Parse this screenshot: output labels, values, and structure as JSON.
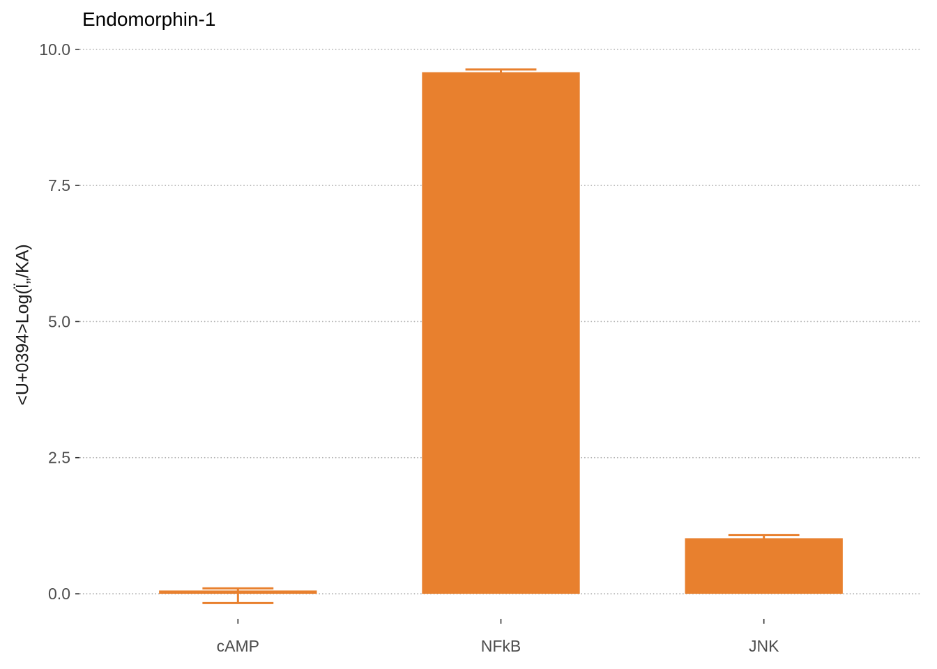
{
  "chart_data": {
    "type": "bar",
    "title": "Endomorphin-1",
    "ylabel": "<U+0394>Log(Ï„/KA)",
    "categories": [
      "cAMP",
      "NFkB",
      "JNK"
    ],
    "values": [
      0.06,
      9.58,
      1.02
    ],
    "error_low": [
      -0.17,
      9.53,
      0.97
    ],
    "error_high": [
      0.1,
      9.63,
      1.08
    ],
    "yticks": [
      0.0,
      2.5,
      5.0,
      7.5,
      10.0
    ],
    "ylim": [
      -0.46,
      10.33
    ],
    "bar_color": "#E8802E",
    "grid": "dotted-horizontal",
    "gridline_color": "#B0B0B0",
    "axis_text_color": "#4D4D4D",
    "tick_mark_color": "#333333",
    "background": "#FFFFFF",
    "legend": "none"
  }
}
